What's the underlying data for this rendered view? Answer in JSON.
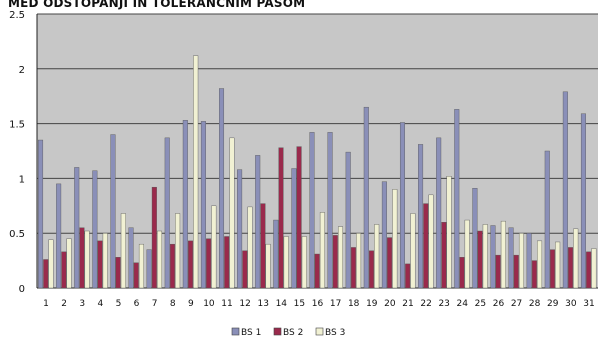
{
  "chart_data": {
    "type": "bar",
    "title": "MED ODSTOPANJI IN TOLERANČNIM PASOM",
    "xlabel": "",
    "ylabel": "",
    "categories": [
      "1",
      "2",
      "3",
      "4",
      "5",
      "6",
      "7",
      "8",
      "9",
      "10",
      "11",
      "12",
      "13",
      "14",
      "15",
      "16",
      "17",
      "18",
      "19",
      "20",
      "21",
      "22",
      "23",
      "24",
      "25",
      "26",
      "27",
      "28",
      "29",
      "30",
      "31"
    ],
    "yticks": [
      "0",
      "0.5",
      "1",
      "1.5",
      "2",
      "2.5"
    ],
    "ylim": [
      0,
      2.5
    ],
    "grid": true,
    "legend_position": "bottom",
    "series": [
      {
        "name": "BS 1",
        "color": "#8a8fb8",
        "values": [
          1.35,
          0.95,
          1.1,
          1.07,
          1.4,
          0.55,
          0.35,
          1.37,
          1.53,
          1.52,
          1.82,
          1.08,
          1.21,
          0.62,
          1.09,
          1.42,
          1.42,
          1.24,
          1.65,
          0.97,
          1.51,
          1.31,
          1.37,
          1.63,
          0.91,
          0.57,
          0.55,
          0.5,
          1.25,
          1.79,
          1.59
        ]
      },
      {
        "name": "BS 2",
        "color": "#9a2a4c",
        "values": [
          0.26,
          0.33,
          0.55,
          0.43,
          0.28,
          0.23,
          0.92,
          0.4,
          0.43,
          0.45,
          0.47,
          0.34,
          0.77,
          1.28,
          1.29,
          0.31,
          0.48,
          0.37,
          0.34,
          0.46,
          0.22,
          0.77,
          0.6,
          0.28,
          0.52,
          0.3,
          0.3,
          0.25,
          0.35,
          0.37,
          0.33
        ]
      },
      {
        "name": "BS 3",
        "color": "#f1f1d3",
        "values": [
          0.44,
          0.45,
          0.52,
          0.5,
          0.68,
          0.4,
          0.52,
          0.68,
          2.12,
          0.75,
          1.37,
          0.74,
          0.4,
          0.47,
          0.47,
          0.69,
          0.56,
          0.5,
          0.58,
          0.9,
          0.68,
          0.85,
          1.02,
          0.62,
          0.58,
          0.61,
          0.5,
          0.43,
          0.42,
          0.54,
          0.36
        ]
      }
    ]
  },
  "colors": {
    "plot_background": "#c7c7c7",
    "gridline": "#444444",
    "page_background": "#ffffff"
  }
}
